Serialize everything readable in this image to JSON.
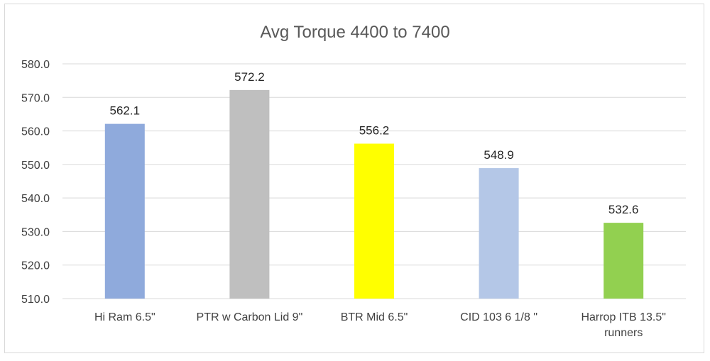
{
  "chart_data": {
    "type": "bar",
    "title": "Avg Torque 4400 to 7400",
    "xlabel": "",
    "ylabel": "",
    "ylim": [
      510,
      580
    ],
    "yticks": [
      "510.0",
      "520.0",
      "530.0",
      "540.0",
      "550.0",
      "560.0",
      "570.0",
      "580.0"
    ],
    "grid": true,
    "legend": "none",
    "categories": [
      [
        "Hi Ram 6.5\""
      ],
      [
        "PTR w Carbon Lid 9\""
      ],
      [
        "BTR Mid  6.5\""
      ],
      [
        "CID 103 6 1/8 \""
      ],
      [
        "Harrop ITB 13.5\"",
        "runners"
      ]
    ],
    "values": [
      562.1,
      572.2,
      556.2,
      548.9,
      532.6
    ],
    "data_labels": [
      "562.1",
      "572.2",
      "556.2",
      "548.9",
      "532.6"
    ],
    "colors": [
      "#8faadc",
      "#bfbfbf",
      "#ffff00",
      "#b4c7e7",
      "#92d050"
    ]
  }
}
